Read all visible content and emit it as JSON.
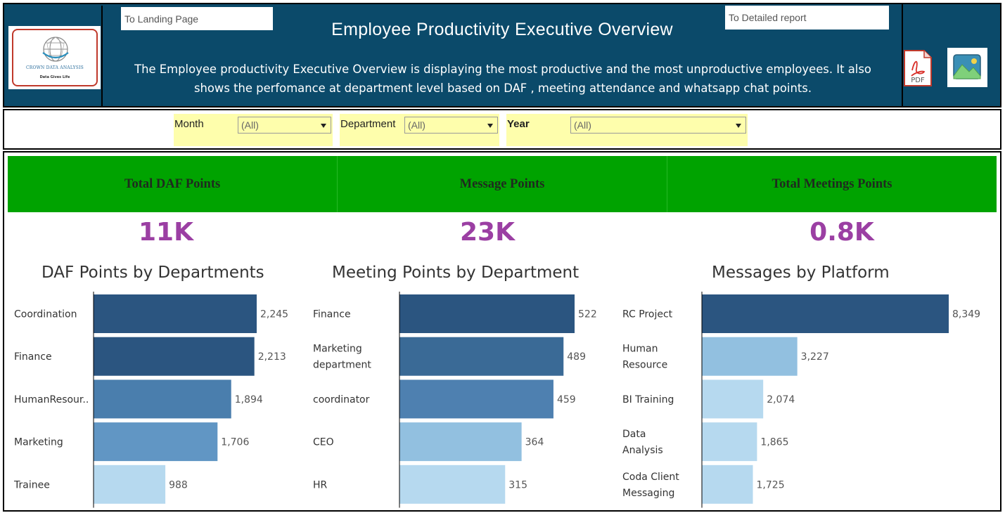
{
  "header": {
    "logo_name": "CROWN DATA ANALYSIS",
    "logo_tagline": "Data Gives Life",
    "nav_landing": "To Landing Page",
    "nav_detail": "To Detailed  report",
    "title": "Employee Productivity Executive Overview",
    "description_line1": "The Employee productivity Executive Overview is displaying the most productive and the most unproductive employees. It also",
    "description_line2": "shows the perfomance at department level based on DAF , meeting attendance  and whatsapp chat points.",
    "pdf_label": "PDF",
    "icons": [
      "pdf-icon",
      "image-icon"
    ]
  },
  "filters": [
    {
      "label": "Month",
      "value": "(All)"
    },
    {
      "label": "Department",
      "value": "(All)"
    },
    {
      "label": "Year",
      "value": "(All)"
    }
  ],
  "kpis": [
    {
      "label": "Total DAF Points",
      "value": "11K"
    },
    {
      "label": "Message Points",
      "value": "23K"
    },
    {
      "label": "Total Meetings Points",
      "value": "0.8K"
    }
  ],
  "colors": {
    "header_bg": "#0b4a6a",
    "kpi_band": "#00a300",
    "kpi_value": "#9b3fa3",
    "filter_bg": "#fefeac"
  },
  "chart_data": [
    {
      "type": "bar",
      "orientation": "horizontal",
      "title": "DAF Points by Departments",
      "categories": [
        "Coordination",
        "Finance",
        "HumanResour..",
        "Marketing",
        "Trainee"
      ],
      "values": [
        2245,
        2213,
        1894,
        1706,
        988
      ],
      "value_labels": [
        "2,245",
        "2,213",
        "1,894",
        "1,706",
        "988"
      ],
      "colors": [
        "#2b5580",
        "#2b5580",
        "#4a7ead",
        "#6196c4",
        "#b6d9ef"
      ],
      "xlim": [
        0,
        2245
      ]
    },
    {
      "type": "bar",
      "orientation": "horizontal",
      "title": "Meeting Points by Department",
      "categories": [
        "Finance",
        "Marketing department ma..",
        "coordinator",
        "CEO",
        "HR"
      ],
      "values": [
        522,
        489,
        459,
        364,
        315
      ],
      "value_labels": [
        "522",
        "489",
        "459",
        "364",
        "315"
      ],
      "colors": [
        "#2b5580",
        "#3a6a96",
        "#4e80b0",
        "#92c0e0",
        "#b6d9ef"
      ],
      "xlim": [
        0,
        522
      ]
    },
    {
      "type": "bar",
      "orientation": "horizontal",
      "title": "Messages  by  Platform",
      "categories": [
        "RC Project",
        "Human Resource",
        "BI Training",
        "Data Analysis Page",
        "Coda Client Messaging"
      ],
      "values": [
        8349,
        3227,
        2074,
        1865,
        1725
      ],
      "value_labels": [
        "8,349",
        "3,227",
        "2,074",
        "1,865",
        "1,725"
      ],
      "colors": [
        "#2b5580",
        "#92c0e0",
        "#b6d9ef",
        "#b6d9ef",
        "#b6d9ef"
      ],
      "xlim": [
        0,
        8349
      ]
    }
  ]
}
